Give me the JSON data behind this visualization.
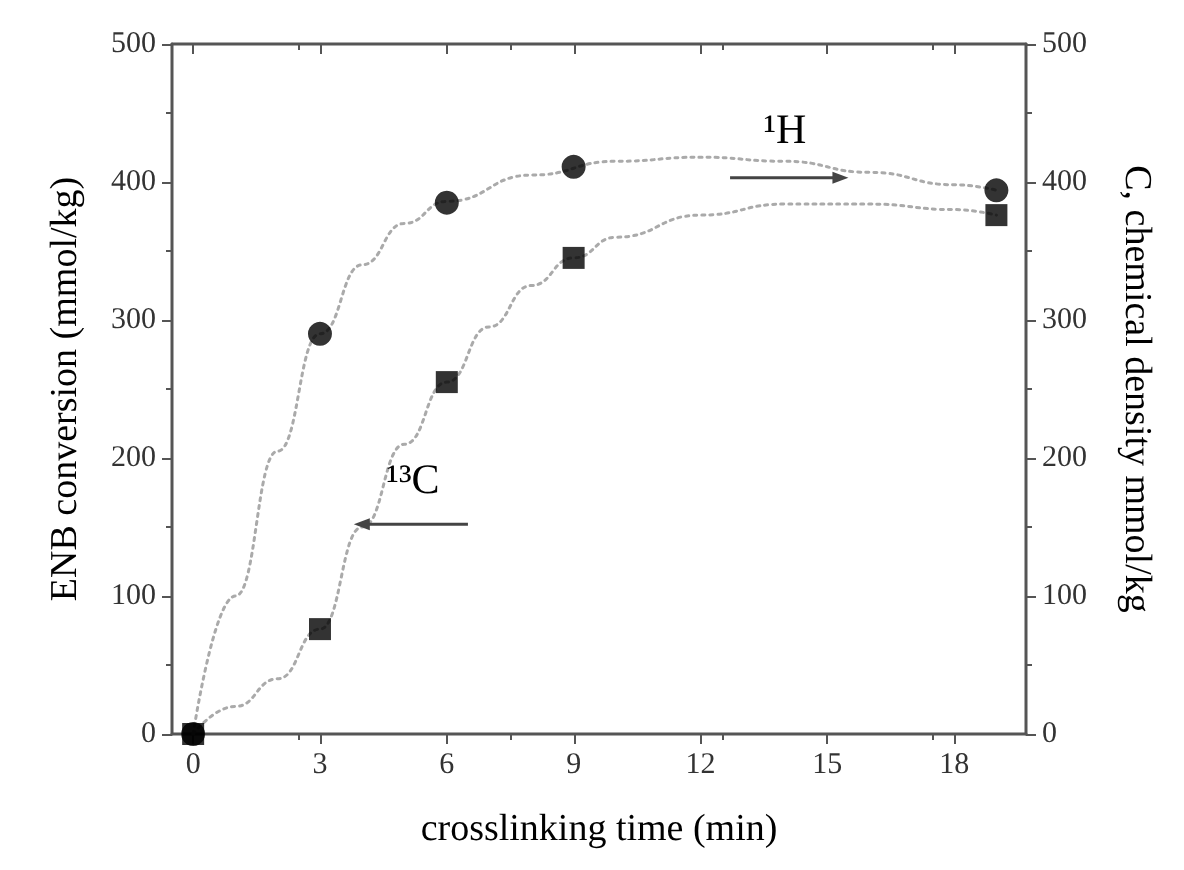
{
  "chart_data": {
    "type": "scatter",
    "xlabel": "crosslinking time (min)",
    "ylabel": "ENB conversion (mmol/kg)",
    "y2label": "C, chemical density mmol/kg",
    "xlim": [
      -0.5,
      19.7
    ],
    "xticks": [
      0,
      3,
      6,
      9,
      12,
      15,
      18
    ],
    "ylim": [
      0,
      500
    ],
    "yticks": [
      0,
      100,
      200,
      300,
      400,
      500
    ],
    "y2lim": [
      0,
      500
    ],
    "y2ticks": [
      0,
      100,
      200,
      300,
      400,
      500
    ],
    "grid": false,
    "annotations": [
      "¹H",
      "¹³C"
    ],
    "series": [
      {
        "type": "line",
        "color": "#aaaaaa",
        "marker": "none",
        "line_style": "dotted",
        "x": [
          0,
          1,
          2,
          3,
          4,
          5,
          6,
          8,
          10,
          12,
          14,
          16,
          18,
          19
        ],
        "values": [
          0,
          100,
          205,
          290,
          340,
          370,
          386,
          405,
          415,
          418,
          415,
          407,
          398,
          394
        ]
      },
      {
        "type": "line",
        "color": "#aaaaaa",
        "marker": "none",
        "line_style": "dotted",
        "x": [
          0,
          1,
          2,
          3,
          4,
          5,
          6,
          7,
          8,
          9,
          10,
          12,
          14,
          16,
          18,
          19
        ],
        "values": [
          0,
          20,
          40,
          76,
          150,
          210,
          255,
          295,
          325,
          345,
          360,
          376,
          384,
          384,
          380,
          376
        ]
      },
      {
        "color": "#000000",
        "marker": "circle",
        "x": [
          0,
          3,
          6,
          9,
          19
        ],
        "values": [
          0,
          290,
          385,
          411,
          394
        ]
      },
      {
        "color": "#000000",
        "marker": "square",
        "x": [
          0,
          3,
          6,
          9,
          19
        ],
        "values": [
          0,
          76,
          255,
          345,
          376
        ]
      }
    ]
  }
}
